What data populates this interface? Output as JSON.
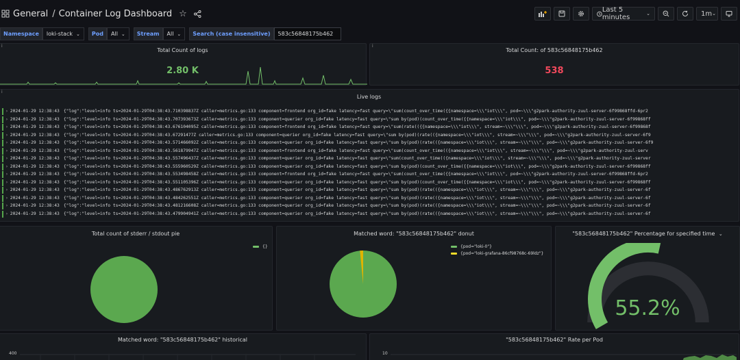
{
  "header": {
    "folder": "General",
    "title": "Container Log Dashboard",
    "time_range": "Last 5 minutes",
    "refresh": "1m"
  },
  "variables": [
    {
      "label": "Namespace",
      "value": "loki-stack",
      "dropdown": true
    },
    {
      "label": "Pod",
      "value": "All",
      "dropdown": true
    },
    {
      "label": "Stream",
      "value": "All",
      "dropdown": true
    },
    {
      "label": "Search (case insensitive)",
      "value": "583c56848175b462",
      "dropdown": false
    }
  ],
  "panels": {
    "total_count": {
      "title": "Total Count of logs",
      "value": "2.80 K",
      "color": "#73bf69"
    },
    "total_count_search": {
      "title": "Total Count: of 583c56848175b462",
      "value": "538",
      "color": "#f2495c"
    },
    "live_logs": {
      "title": "Live logs"
    },
    "pie": {
      "title": "Total count of stderr / stdout pie",
      "legend": [
        "{}"
      ]
    },
    "donut": {
      "title": "Matched word: \"583c56848175b462\" donut",
      "legend": [
        "{pod=\"loki-0\"}",
        "{pod=\"loki-grafana-86cf98768c-69ldz\"}"
      ]
    },
    "gauge": {
      "title": "\"583c56848175b462\" Percentage for specified time",
      "value": "55.2%",
      "percent": 55.2
    },
    "historical": {
      "title": "Matched word: \"583c56848175b462\" historical",
      "y_top": "400"
    },
    "rate": {
      "title": "\"583c56848175b462\" Rate per Pod",
      "y_top": "10"
    }
  },
  "colors": {
    "green": "#73bf69",
    "yellow": "#fade2a",
    "red": "#f2495c",
    "bg": "#111217",
    "panel": "#181b1f"
  },
  "logs": [
    {
      "ts": "2024-01-29 12:38:43",
      "text": "{\"log\":\"level=info ts=2024-01-29T04:38:43.710398837Z caller=metrics.go:133 component=frontend org_id=fake latency=fast query=\\\"sum(count_over_time({{namespace=\\\\\\\"iot\\\\\\\", pod=~\\\\\\\"g2park-authority-zuul-server-6f99868ffd-6pr2"
    },
    {
      "ts": "2024-01-29 12:38:43",
      "text": "{\"log\":\"level=info ts=2024-01-29T04:38:43.707393673Z caller=metrics.go:133 component=querier org_id=fake latency=fast query=\\\"sum by(pod)(count_over_time({{namespace=\\\\\\\"iot\\\\\\\", pod=~\\\\\\\"g2park-authority-zuul-server-6f99868ff"
    },
    {
      "ts": "2024-01-29 12:38:43",
      "text": "{\"log\":\"level=info ts=2024-01-29T04:38:43.676104095Z caller=metrics.go:133 component=frontend org_id=fake latency=fast query=\\\"sum(rate(({{namespace=\\\\\\\"iot\\\\\\\", stream=~\\\\\\\"\\\\\\\", pod=~\\\\\\\"g2park-authority-zuul-server-6f99868f"
    },
    {
      "ts": "2024-01-29 12:38:43",
      "text": "{\"log\":\"level=info ts=2024-01-29T04:38:43.67291477Z caller=metrics.go:133 component=querier org_id=fake latency=fast query=\\\"sum by(pod)(rate(({namespace=\\\\\\\"iot\\\\\\\", stream=~\\\\\\\"\\\\\\\", pod=~\\\\\\\"g2park-authority-zuul-server-6f9"
    },
    {
      "ts": "2024-01-29 12:38:43",
      "text": "{\"log\":\"level=info ts=2024-01-29T04:38:43.571466092Z caller=metrics.go:133 component=querier org_id=fake latency=fast query=\\\"sum by(pod)(rate(({namespace=\\\\\\\"iot\\\\\\\", stream=~\\\\\\\"\\\\\\\", pod=~\\\\\\\"g2park-authority-zuul-server-6f9"
    },
    {
      "ts": "2024-01-29 12:38:43",
      "text": "{\"log\":\"level=info ts=2024-01-29T04:38:43.561879947Z caller=metrics.go:133 component=frontend org_id=fake latency=fast query=\\\"sum(count_over_time(({namespace=\\\\\\\"iot\\\\\\\", stream=~\\\\\\\"\\\\\\\", pod=~\\\\\\\"g2park-authority-zuul-serv"
    },
    {
      "ts": "2024-01-29 12:38:43",
      "text": "{\"log\":\"level=info ts=2024-01-29T04:38:43.557496437Z caller=metrics.go:133 component=querier org_id=fake latency=fast query=\\\"sum(count_over_time(({namespace=\\\\\\\"iot\\\\\\\", stream=~\\\\\\\"\\\\\\\", pod=~\\\\\\\"g2park-authority-zuul-server"
    },
    {
      "ts": "2024-01-29 12:38:43",
      "text": "{\"log\":\"level=info ts=2024-01-29T04:38:43.555960529Z caller=metrics.go:133 component=querier org_id=fake latency=fast query=\\\"sum by(pod)(count_over_time({{namespace=\\\\\\\"iot\\\\\\\", pod=~\\\\\\\"g2park-authority-zuul-server-6f99868ff"
    },
    {
      "ts": "2024-01-29 12:38:43",
      "text": "{\"log\":\"level=info ts=2024-01-29T04:38:43.553498458Z caller=metrics.go:133 component=frontend org_id=fake latency=fast query=\\\"sum(count_over_time({{namespace=\\\\\\\"iot\\\\\\\", pod=~\\\\\\\"g2park-authority-zuul-server-6f99868ffd-6pr2"
    },
    {
      "ts": "2024-01-29 12:38:43",
      "text": "{\"log\":\"level=info ts=2024-01-29T04:38:43.551105396Z caller=metrics.go:133 component=querier org_id=fake latency=fast query=\\\"sum by(pod)(count_over_time({{namespace=\\\\\\\"iot\\\\\\\", pod=~\\\\\\\"g2park-authority-zuul-server-6f99868ff"
    },
    {
      "ts": "2024-01-29 12:38:43",
      "text": "{\"log\":\"level=info ts=2024-01-29T04:38:43.486762913Z caller=metrics.go:133 component=querier org_id=fake latency=fast query=\\\"sum by(pod)(rate(({namespace=\\\\\\\"iot\\\\\\\", stream=~\\\\\\\"\\\\\\\", pod=~\\\\\\\"g2park-authority-zuul-server-6f"
    },
    {
      "ts": "2024-01-29 12:38:43",
      "text": "{\"log\":\"level=info ts=2024-01-29T04:38:43.484262551Z caller=metrics.go:133 component=querier org_id=fake latency=fast query=\\\"sum by(pod)(rate(({namespace=\\\\\\\"iot\\\\\\\", stream=~\\\\\\\"\\\\\\\", pod=~\\\\\\\"g2park-authority-zuul-server-6f"
    },
    {
      "ts": "2024-01-29 12:38:43",
      "text": "{\"log\":\"level=info ts=2024-01-29T04:38:43.481216608Z caller=metrics.go:133 component=querier org_id=fake latency=fast query=\\\"sum by(pod)(rate(({namespace=\\\\\\\"iot\\\\\\\", stream=~\\\\\\\"\\\\\\\", pod=~\\\\\\\"g2park-authority-zuul-server-6f"
    },
    {
      "ts": "2024-01-29 12:38:43",
      "text": "{\"log\":\"level=info ts=2024-01-29T04:38:43.479904941Z caller=metrics.go:133 component=querier org_id=fake latency=fast query=\\\"sum by(pod)(rate(({namespace=\\\\\\\"iot\\\\\\\", stream=~\\\\\\\"\\\\\\\", pod=~\\\\\\\"g2park-authority-zuul-server-6f"
    }
  ]
}
